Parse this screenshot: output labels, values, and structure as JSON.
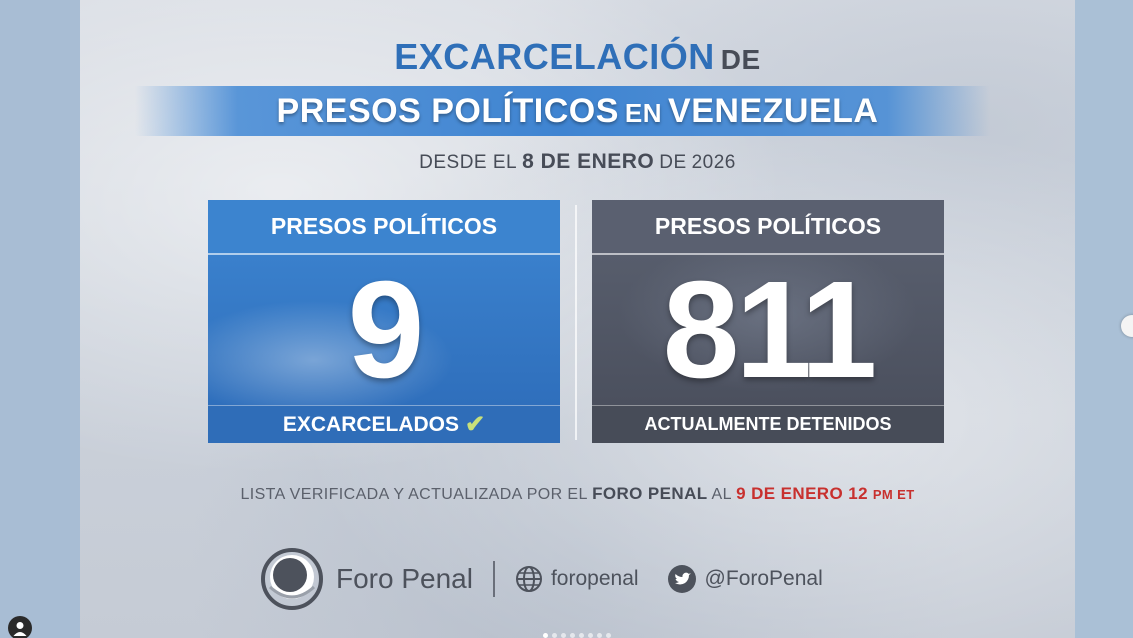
{
  "headline": {
    "line1_big": "EXCARCELACIÓN",
    "line1_small": "DE",
    "line2_a": "PRESOS POLÍTICOS",
    "line2_small": "EN",
    "line2_b": "VENEZUELA"
  },
  "subtitle": {
    "prefix": "DESDE EL",
    "date": "8 DE ENERO",
    "mid": "DE",
    "year": "2026"
  },
  "released_box": {
    "header": "PRESOS POLÍTICOS",
    "value": "9",
    "footer": "EXCARCELADOS",
    "check_icon": "check-icon",
    "color": "#3c84cf"
  },
  "detained_box": {
    "header": "PRESOS POLÍTICOS",
    "value": "811",
    "footer": "ACTUALMENTE DETENIDOS",
    "color": "#5a6070"
  },
  "verified": {
    "text": "LISTA VERIFICADA Y ACTUALIZADA POR EL",
    "org": "FORO PENAL",
    "at": "AL",
    "date": "9 DE ENERO 12",
    "time_unit": "PM ET",
    "date_color": "#c8302e"
  },
  "footer": {
    "brand": "Foro Penal",
    "website": "foropenal",
    "twitter": "@ForoPenal",
    "logo_icon": "foro-penal-logo-icon",
    "web_icon": "globe-icon",
    "twitter_icon": "twitter-bird-icon"
  },
  "carousel": {
    "total": 8,
    "active": 1
  }
}
